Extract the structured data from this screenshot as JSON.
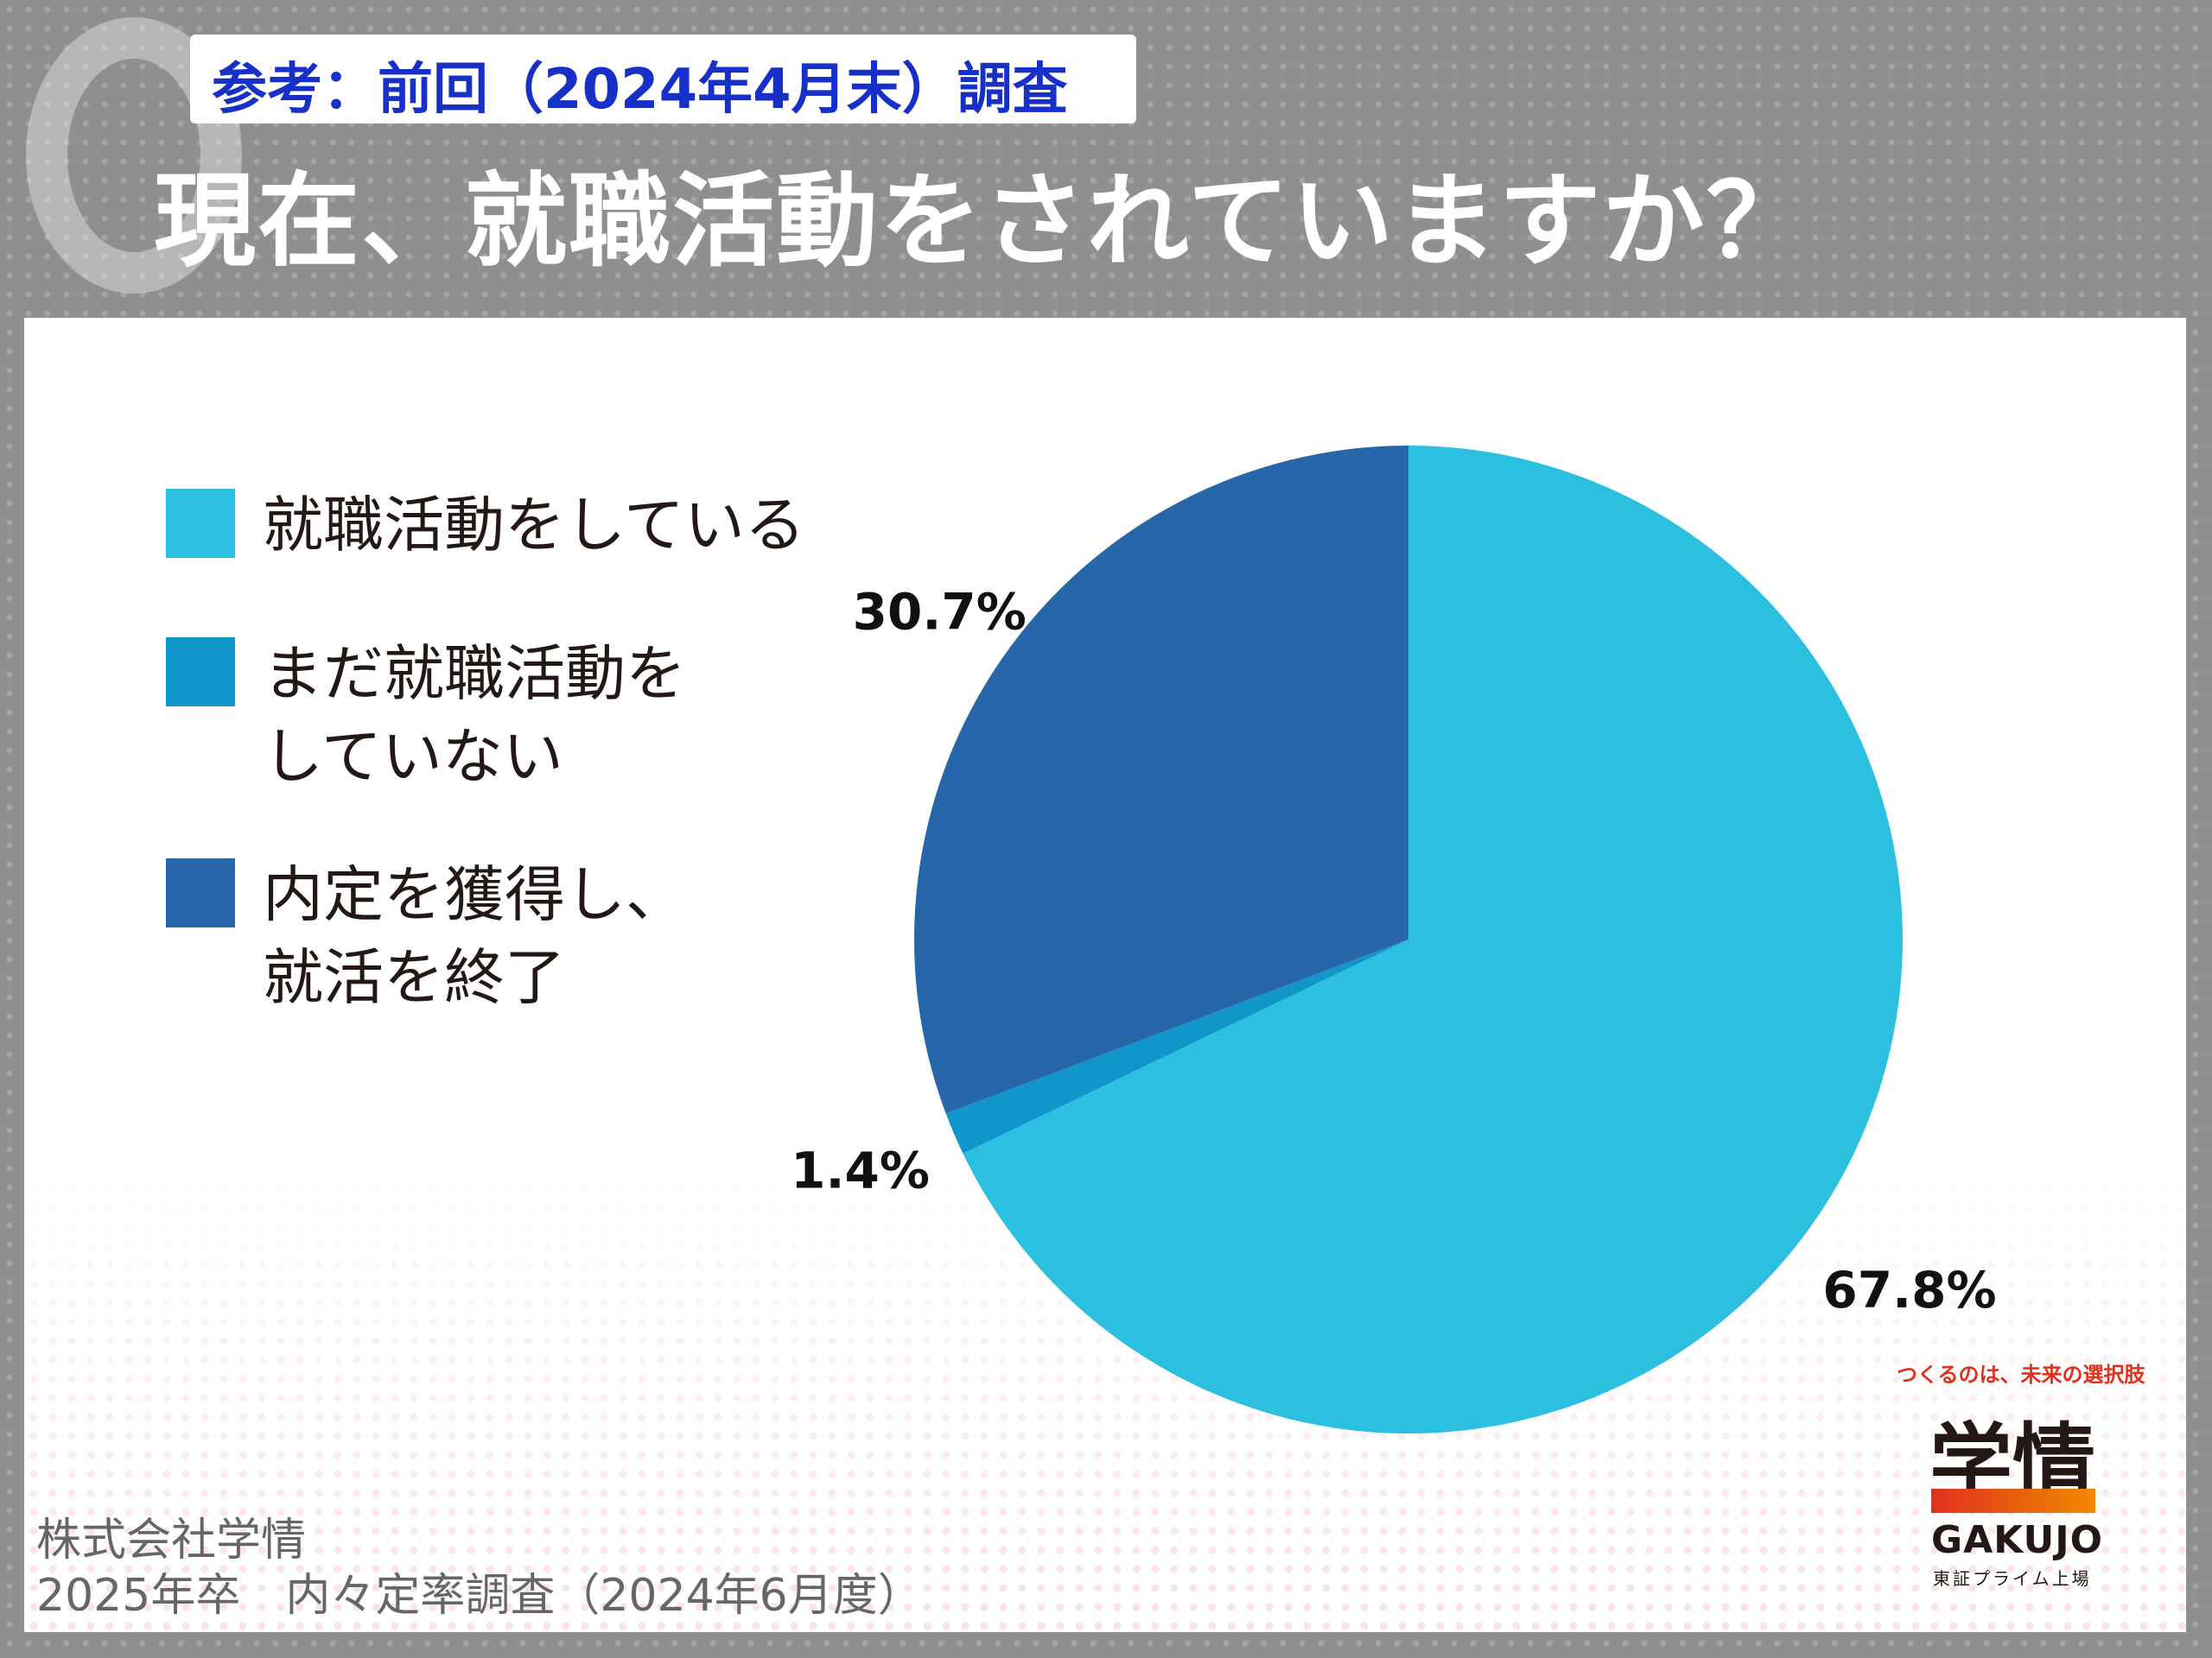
{
  "header": {
    "subtitle": "参考：前回（2024年4月末）調査",
    "title": "現在、就職活動をされていますか？"
  },
  "chart_data": {
    "type": "pie",
    "title": "現在、就職活動をされていますか？",
    "slices": [
      {
        "label": "就職活動をしている",
        "value": 67.8,
        "display": "67.8%",
        "color": "#2bbfe0"
      },
      {
        "label": "まだ就職活動を\nしていない",
        "value": 1.4,
        "display": "1.4%",
        "color": "#1196cc"
      },
      {
        "label": "内定を獲得し、\n就活を終了",
        "value": 30.7,
        "display": "30.7%",
        "color": "#2766a8"
      }
    ],
    "start_angle_deg": 0,
    "direction": "clockwise",
    "legend_position": "left"
  },
  "footer": {
    "line1": "株式会社学情",
    "line2": "2025年卒　内々定率調査（2024年6月度）"
  },
  "logo": {
    "tagline": "つくるのは、未来の選択肢",
    "name": "学情",
    "name_en": "GAKUJO",
    "sub": "東証プライム上場"
  }
}
